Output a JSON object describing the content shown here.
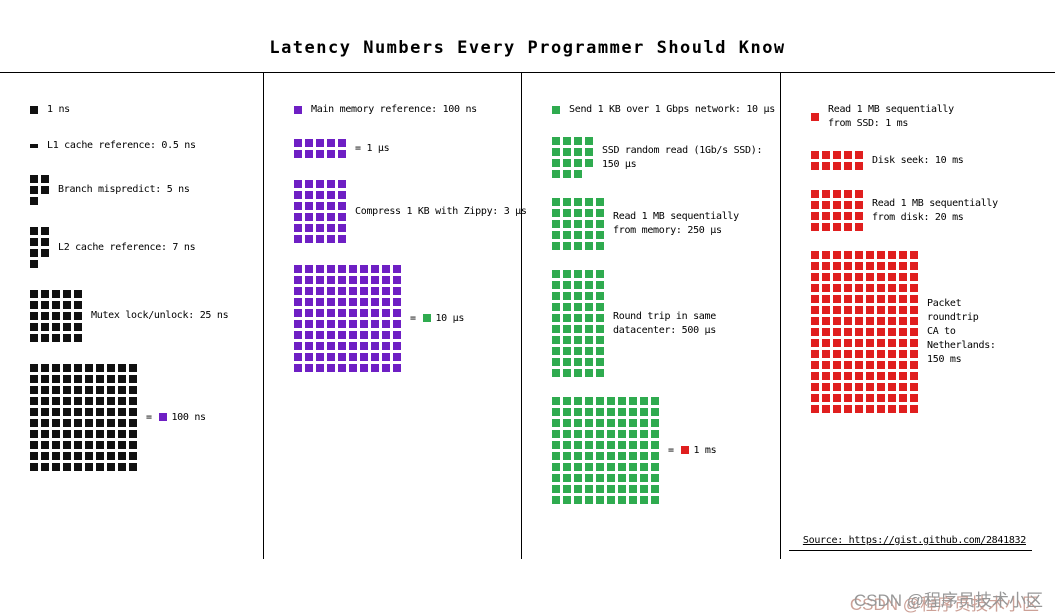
{
  "title": "Latency Numbers Every Programmer Should Know",
  "source": "Source: https://gist.github.com/2841832",
  "watermark": "CSDN @程序员技术小区",
  "colors": {
    "black": "#111111",
    "purple": "#6e1fc4",
    "green": "#2fab4f",
    "red": "#e01f1f"
  },
  "legend_scale": {
    "black_square": "1 ns",
    "purple_square": "100 ns",
    "green_square": "10 μs",
    "red_square": "1 ms"
  },
  "columns": [
    {
      "color": "black",
      "items": [
        {
          "count": 1,
          "cols": 1,
          "label": "1 ns"
        },
        {
          "count": 1,
          "cols": 1,
          "half": true,
          "label": "L1 cache reference: 0.5 ns"
        },
        {
          "count": 5,
          "cols": 2,
          "label": "Branch mispredict: 5 ns"
        },
        {
          "count": 7,
          "cols": 2,
          "label": "L2 cache reference: 7 ns"
        },
        {
          "count": 25,
          "cols": 5,
          "label": "Mutex lock/unlock: 25 ns"
        },
        {
          "count": 100,
          "cols": 10,
          "eq": "=",
          "swatch": "purple",
          "label": "100 ns"
        }
      ]
    },
    {
      "color": "purple",
      "items": [
        {
          "count": 1,
          "cols": 1,
          "label": "Main memory reference: 100 ns"
        },
        {
          "count": 10,
          "cols": 5,
          "eq": "=",
          "label": "1 μs"
        },
        {
          "count": 30,
          "cols": 5,
          "label": "Compress 1 KB with Zippy: 3 μs"
        },
        {
          "count": 100,
          "cols": 10,
          "eq": "=",
          "swatch": "green",
          "label": "10 μs"
        }
      ]
    },
    {
      "color": "green",
      "items": [
        {
          "count": 1,
          "cols": 1,
          "label": "Send 1 KB over 1 Gbps network: 10 μs"
        },
        {
          "count": 15,
          "cols": 4,
          "label": "SSD random read (1Gb/s SSD):\n150 μs"
        },
        {
          "count": 25,
          "cols": 5,
          "label": "Read 1 MB sequentially\nfrom memory: 250 μs"
        },
        {
          "count": 50,
          "cols": 5,
          "label": "Round trip in same\ndatacenter: 500 μs"
        },
        {
          "count": 100,
          "cols": 10,
          "eq": "=",
          "swatch": "red",
          "label": "1 ms"
        }
      ]
    },
    {
      "color": "red",
      "items": [
        {
          "count": 1,
          "cols": 1,
          "label": "Read 1 MB sequentially\nfrom SSD: 1 ms"
        },
        {
          "count": 10,
          "cols": 5,
          "label": "Disk seek: 10 ms"
        },
        {
          "count": 20,
          "cols": 5,
          "label": "Read 1 MB sequentially\nfrom disk: 20 ms"
        },
        {
          "count": 150,
          "cols": 10,
          "label": "Packet\nroundtrip\nCA to\nNetherlands:\n150 ms"
        }
      ]
    }
  ],
  "chart_data": {
    "type": "waffle",
    "title": "Latency Numbers Every Programmer Should Know",
    "unit_scales_ns": {
      "black": 1,
      "purple": 100,
      "green": 10000,
      "red": 1000000
    },
    "categories": [
      "1 ns reference",
      "L1 cache reference",
      "Branch mispredict",
      "L2 cache reference",
      "Mutex lock/unlock",
      "Main memory reference",
      "Compress 1 KB with Zippy",
      "Send 1 KB over 1 Gbps network",
      "SSD random read (1Gb/s SSD)",
      "Read 1 MB sequentially from memory",
      "Round trip in same datacenter",
      "Read 1 MB sequentially from SSD",
      "Disk seek",
      "Read 1 MB sequentially from disk",
      "Packet roundtrip CA to Netherlands"
    ],
    "values_ns": [
      1,
      0.5,
      5,
      7,
      25,
      100,
      3000,
      10000,
      150000,
      250000,
      500000,
      1000000,
      10000000,
      20000000,
      150000000
    ],
    "value_labels": [
      "1 ns",
      "0.5 ns",
      "5 ns",
      "7 ns",
      "25 ns",
      "100 ns",
      "3 μs",
      "10 μs",
      "150 μs",
      "250 μs",
      "500 μs",
      "1 ms",
      "10 ms",
      "20 ms",
      "150 ms"
    ],
    "legend_position": "inline",
    "grid": false
  }
}
